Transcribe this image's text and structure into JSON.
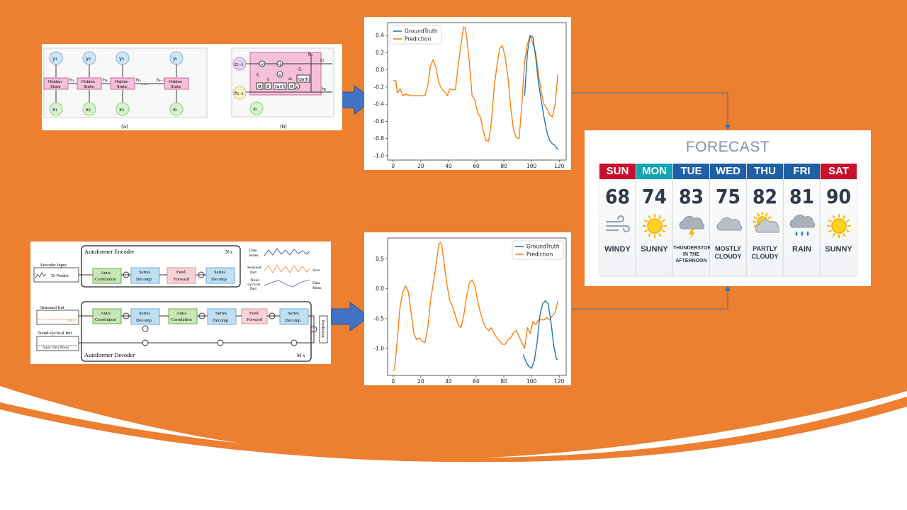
{
  "theme": {
    "orange": "#ec7f30",
    "arrow_blue": "#4472c4",
    "connector": "#3c6fb0"
  },
  "lstm_diagram": {
    "outputs": [
      "y₁",
      "y₂",
      "y₃",
      "yₜ"
    ],
    "inputs": [
      "x₁",
      "x₂",
      "x₃",
      "xₜ"
    ],
    "cell_label_line1": "Hidden",
    "cell_label_line2": "State",
    "hidden_labels": [
      "h₁",
      "h₂",
      "h₃",
      "hₜ₋₁"
    ],
    "ellipsis": "......",
    "caption_a": "(a)",
    "caption_b": "(b)",
    "cell_b": {
      "c_prev": "cₜ₋₁",
      "c_next": "cₜ",
      "h_prev": "hₜ₋₁",
      "h_next": "hₜ",
      "h_out": "hₜ",
      "x_in": "xₜ",
      "sigma": "σ",
      "tanh": "tanh",
      "f": "fₜ",
      "i": "iₜ",
      "o": "oₜ",
      "c_tilde": "c̃ₜ",
      "times": "×",
      "plus": "+"
    }
  },
  "autoformer_diagram": {
    "encoder_title": "Autoformer Encoder",
    "encoder_repeat": "N x",
    "decoder_title": "Autoformer Decoder",
    "decoder_repeat": "M x",
    "encoder_input": "Encoder Input",
    "to_predict": "To Predict",
    "seasonal_init": "Seasonal Init",
    "zero": "Zero",
    "trend_init": "Trend-cyclical Init",
    "input_data_mean": "Input Data Mean",
    "auto_corr_1": "Auto-",
    "auto_corr_2": "Correlation",
    "series_1": "Series",
    "series_2": "Decomp",
    "feed_1": "Feed",
    "feed_2": "Forward",
    "prediction": "Prediction",
    "legend_time": [
      "Time",
      "Series"
    ],
    "legend_seasonal": [
      "Seasonal",
      "Part"
    ],
    "legend_trend": [
      "Trend",
      "-cyclical",
      "Part"
    ],
    "legend_zero": "Zero",
    "legend_mean": [
      "Data",
      "Mean"
    ]
  },
  "chart_data": [
    {
      "type": "line",
      "xlim": [
        -4,
        125
      ],
      "ylim": [
        -1.05,
        0.55
      ],
      "x_ticks": [
        0,
        20,
        40,
        60,
        80,
        100,
        120
      ],
      "y_ticks": [
        -1.0,
        -0.8,
        -0.6,
        -0.4,
        -0.2,
        0.0,
        0.2,
        0.4
      ],
      "legend_position": "top-left",
      "series": [
        {
          "name": "GroundTruth",
          "color": "#1f77b4",
          "x": [
            95,
            97,
            99,
            101,
            103,
            105,
            107,
            109,
            111,
            113,
            115,
            117,
            119
          ],
          "values": [
            -0.3,
            0.2,
            0.4,
            0.38,
            0.15,
            -0.15,
            -0.35,
            -0.55,
            -0.72,
            -0.82,
            -0.86,
            -0.88,
            -0.93
          ]
        },
        {
          "name": "Prediction",
          "color": "#ff7f0e",
          "x": [
            0,
            2,
            3,
            5,
            7,
            9,
            11,
            13,
            15,
            17,
            19,
            21,
            23,
            25,
            27,
            29,
            31,
            33,
            35,
            37,
            39,
            41,
            43,
            45,
            47,
            49,
            51,
            52,
            53,
            55,
            57,
            59,
            61,
            63,
            65,
            67,
            69,
            71,
            73,
            75,
            77,
            79,
            81,
            83,
            85,
            87,
            89,
            91,
            93,
            95,
            97,
            99,
            101,
            103,
            105,
            107,
            109,
            111,
            113,
            115,
            117,
            119
          ],
          "values": [
            -0.12,
            -0.13,
            -0.27,
            -0.22,
            -0.3,
            -0.28,
            -0.29,
            -0.3,
            -0.3,
            -0.3,
            -0.3,
            -0.3,
            -0.3,
            -0.18,
            0.05,
            0.12,
            0.02,
            -0.15,
            -0.22,
            -0.25,
            -0.3,
            -0.22,
            -0.23,
            -0.23,
            0.05,
            0.3,
            0.5,
            0.49,
            0.4,
            0.1,
            -0.3,
            -0.35,
            -0.5,
            -0.55,
            -0.7,
            -0.82,
            -0.83,
            -0.6,
            -0.2,
            0.05,
            0.25,
            0.28,
            0.15,
            -0.1,
            -0.45,
            -0.7,
            -0.79,
            -0.8,
            -0.4,
            0.1,
            0.3,
            0.4,
            0.3,
            0.2,
            -0.05,
            -0.25,
            -0.4,
            -0.45,
            -0.52,
            -0.55,
            -0.4,
            -0.05
          ]
        }
      ]
    },
    {
      "type": "line",
      "xlim": [
        -4,
        125
      ],
      "ylim": [
        -1.45,
        0.85
      ],
      "x_ticks": [
        0,
        20,
        40,
        60,
        80,
        100,
        120
      ],
      "y_ticks": [
        -1.0,
        -0.5,
        0.0,
        0.5
      ],
      "legend_position": "top-right",
      "series": [
        {
          "name": "GroundTruth",
          "color": "#1f77b4",
          "x": [
            94,
            96,
            98,
            100,
            102,
            104,
            106,
            108,
            110,
            112,
            114,
            116,
            118,
            119
          ],
          "values": [
            -1.1,
            -1.22,
            -1.3,
            -1.33,
            -1.2,
            -0.9,
            -0.45,
            -0.25,
            -0.2,
            -0.25,
            -0.55,
            -0.95,
            -1.18,
            -1.18
          ]
        },
        {
          "name": "Prediction",
          "color": "#ff7f0e",
          "x": [
            0,
            1,
            3,
            5,
            7,
            9,
            11,
            13,
            15,
            17,
            19,
            21,
            23,
            25,
            27,
            29,
            31,
            33,
            34,
            35,
            37,
            39,
            41,
            43,
            45,
            47,
            49,
            51,
            53,
            55,
            57,
            59,
            61,
            63,
            65,
            67,
            69,
            71,
            73,
            75,
            77,
            79,
            81,
            83,
            85,
            87,
            89,
            91,
            93,
            95,
            97,
            99,
            101,
            103,
            105,
            107,
            109,
            111,
            113,
            115,
            117,
            119
          ],
          "values": [
            -1.38,
            -1.35,
            -0.85,
            -0.3,
            -0.05,
            0.05,
            -0.05,
            -0.4,
            -0.75,
            -0.85,
            -0.82,
            -0.88,
            -0.9,
            -0.65,
            -0.2,
            0.1,
            0.4,
            0.75,
            0.77,
            0.75,
            0.4,
            0.05,
            -0.2,
            -0.3,
            -0.45,
            -0.6,
            -0.65,
            -0.45,
            -0.15,
            0.1,
            0.15,
            0.05,
            -0.2,
            -0.4,
            -0.55,
            -0.65,
            -0.7,
            -0.65,
            -0.75,
            -0.82,
            -0.88,
            -0.93,
            -0.93,
            -0.85,
            -0.82,
            -0.73,
            -0.7,
            -0.8,
            -0.9,
            -1.0,
            -0.65,
            -0.75,
            -0.55,
            -0.6,
            -0.52,
            -0.52,
            -0.52,
            -0.48,
            -0.52,
            -0.45,
            -0.4,
            -0.2
          ]
        }
      ]
    }
  ],
  "forecast": {
    "title": "FORECAST",
    "days": [
      {
        "name": "SUN",
        "temp": "68",
        "icon": "wind-icon",
        "cond": [
          "WINDY"
        ],
        "header_color": "#c8102e"
      },
      {
        "name": "MON",
        "temp": "74",
        "icon": "sun-icon",
        "cond": [
          "SUNNY"
        ],
        "header_color": "#16a4b3"
      },
      {
        "name": "TUE",
        "temp": "83",
        "icon": "thunderstorm-icon",
        "cond": [
          "THUNDERSTORMS",
          "IN THE AFTERNOON"
        ],
        "header_color": "#1f5fa6"
      },
      {
        "name": "WED",
        "temp": "75",
        "icon": "cloud-icon",
        "cond": [
          "MOSTLY",
          "CLOUDY"
        ],
        "header_color": "#1f5fa6"
      },
      {
        "name": "THU",
        "temp": "82",
        "icon": "partly-cloudy-icon",
        "cond": [
          "PARTLY",
          "CLOUDY"
        ],
        "header_color": "#1f5fa6"
      },
      {
        "name": "FRI",
        "temp": "81",
        "icon": "rain-icon",
        "cond": [
          "RAIN"
        ],
        "header_color": "#1f5fa6"
      },
      {
        "name": "SAT",
        "temp": "90",
        "icon": "sun-icon",
        "cond": [
          "SUNNY"
        ],
        "header_color": "#c8102e"
      }
    ]
  }
}
